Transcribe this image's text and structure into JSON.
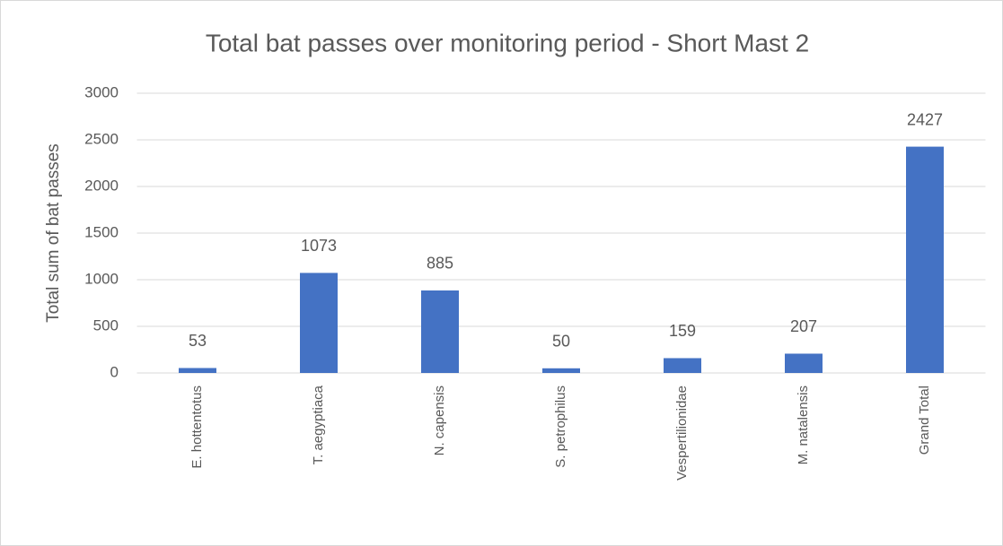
{
  "chart_data": {
    "type": "bar",
    "title": "Total bat passes over monitoring period - Short Mast 2",
    "y_label": "Total sum of bat passes",
    "categories": [
      "E. hottentotus",
      "T. aegyptiaca",
      "N. capensis",
      "S. petrophilus",
      "Vespertilionidae",
      "M. natalensis",
      "Grand Total"
    ],
    "values": [
      53,
      1073,
      885,
      50,
      159,
      207,
      2427
    ],
    "color": "#4472c4",
    "ylim": [
      0,
      3000
    ],
    "yticks": [
      0,
      500,
      1000,
      1500,
      2000,
      2500,
      3000
    ],
    "grid": true
  }
}
